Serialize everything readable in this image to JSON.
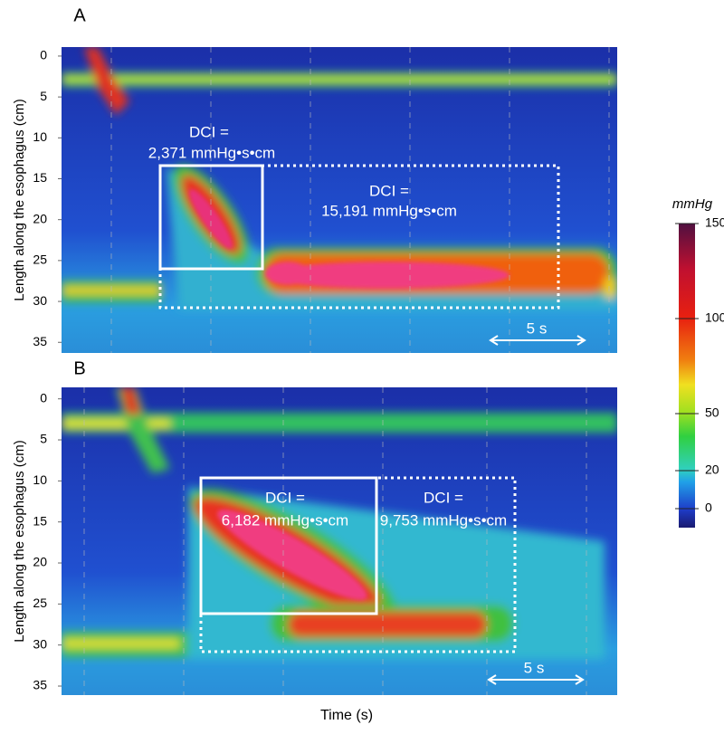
{
  "chart_data": [
    {
      "type": "heatmap",
      "panel_label": "A",
      "ylabel": "Length along the esophagus (cm)",
      "ylim": [
        -1.1,
        36.3
      ],
      "yticks": [
        0,
        5,
        10,
        15,
        20,
        25,
        30,
        35
      ],
      "annotations": [
        "DCI =",
        "2,371 mmHg•s•cm",
        "DCI =",
        "15,191 mmHg•s•cm"
      ],
      "scale_label": "5 s"
    },
    {
      "type": "heatmap",
      "panel_label": "B",
      "ylabel": "Length along the esophagus (cm)",
      "ylim": [
        -1.4,
        36.1
      ],
      "yticks": [
        0,
        5,
        10,
        15,
        20,
        25,
        30,
        35
      ],
      "annotations": [
        "DCI =",
        "6,182 mmHg•s•cm",
        "DCI =",
        "9,753 mmHg•s•cm"
      ],
      "scale_label": "5 s"
    }
  ],
  "xlabel": "Time (s)",
  "colorbar": {
    "label": "mmHg",
    "lim": [
      -10,
      150
    ],
    "ticks": [
      150,
      100,
      50,
      20,
      0
    ]
  }
}
